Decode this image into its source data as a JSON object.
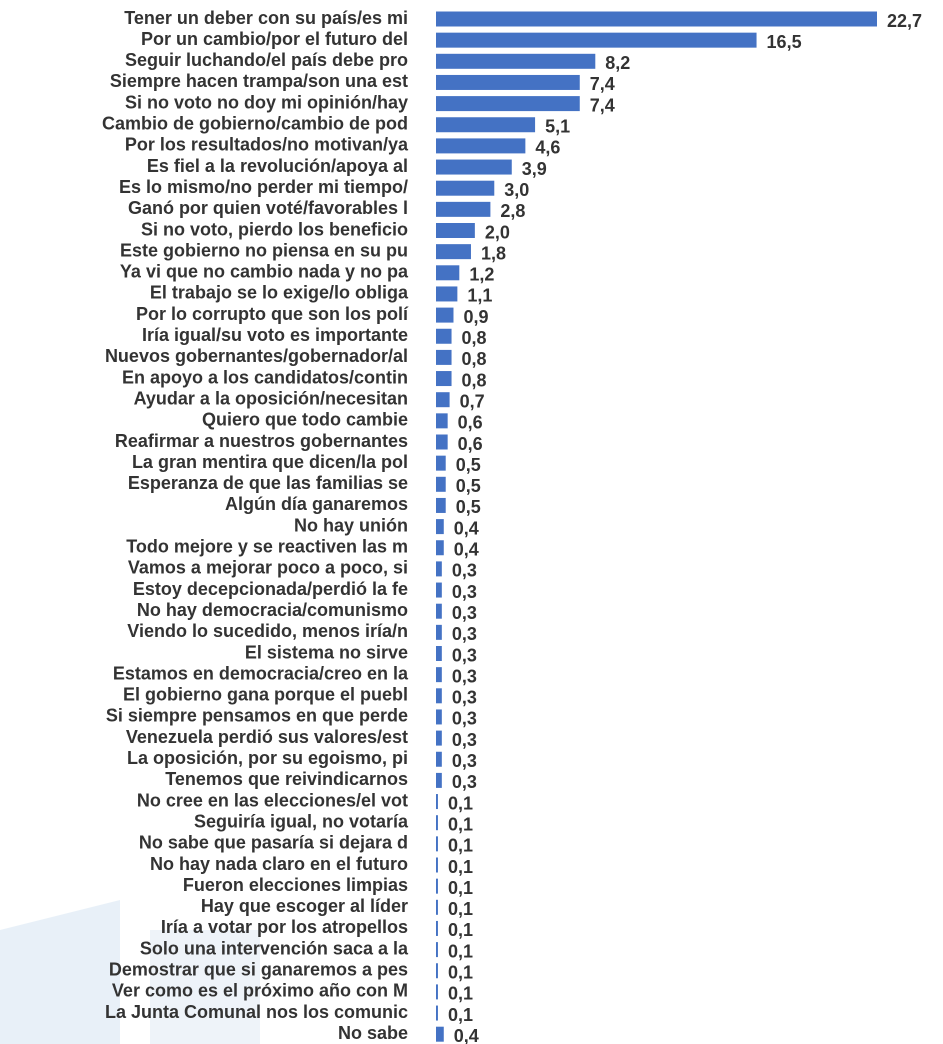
{
  "chart_data": {
    "type": "bar",
    "orientation": "horizontal",
    "color": "#4472c4",
    "categories": [
      "Tener un deber con su país/es mi",
      "Por un cambio/por el futuro del",
      "Seguir luchando/el país debe pro",
      "Siempre hacen trampa/son una est",
      "Si no voto no doy mi opinión/hay",
      "Cambio de gobierno/cambio de pod",
      "Por los resultados/no motivan/ya",
      "Es fiel a la revolución/apoya al",
      "Es lo mismo/no perder mi tiempo/",
      "Ganó por quien voté/favorables l",
      "Si no voto, pierdo los beneficio",
      "Este gobierno no piensa en su pu",
      "Ya vi que no cambio nada y no pa",
      "El trabajo se lo exige/lo obliga",
      "Por lo corrupto que son los polí",
      "Iría igual/su voto es importante",
      "Nuevos gobernantes/gobernador/al",
      "En apoyo a los candidatos/contin",
      "Ayudar a la oposición/necesitan",
      "Quiero que todo cambie",
      "Reafirmar a nuestros gobernantes",
      "La gran mentira que dicen/la pol",
      "Esperanza de que las familias se",
      "Algún día ganaremos",
      "No hay unión",
      "Todo mejore y se reactiven las m",
      "Vamos a mejorar poco a poco, si",
      "Estoy decepcionada/perdió la fe",
      "No hay democracia/comunismo",
      "Viendo lo sucedido, menos iría/n",
      "El sistema no sirve",
      "Estamos en democracia/creo en la",
      "El gobierno gana porque el puebl",
      "Si siempre pensamos en que perde",
      "Venezuela perdió sus valores/est",
      "La oposición, por su egoismo, pi",
      "Tenemos que reivindicarnos",
      "No cree en las elecciones/el vot",
      "Seguiría igual, no votaría",
      "No sabe que pasaría si dejara d",
      "No hay nada claro en el futuro",
      "Fueron elecciones limpias",
      "Hay que escoger al líder",
      "Iría a votar por los atropellos",
      "Solo una intervención saca a la",
      "Demostrar que si ganaremos a pes",
      "Ver como es el próximo año con M",
      "La Junta Comunal nos los comunic",
      "No sabe"
    ],
    "values": [
      22.7,
      16.5,
      8.2,
      7.4,
      7.4,
      5.1,
      4.6,
      3.9,
      3.0,
      2.8,
      2.0,
      1.8,
      1.2,
      1.1,
      0.9,
      0.8,
      0.8,
      0.8,
      0.7,
      0.6,
      0.6,
      0.5,
      0.5,
      0.5,
      0.4,
      0.4,
      0.3,
      0.3,
      0.3,
      0.3,
      0.3,
      0.3,
      0.3,
      0.3,
      0.3,
      0.3,
      0.3,
      0.1,
      0.1,
      0.1,
      0.1,
      0.1,
      0.1,
      0.1,
      0.1,
      0.1,
      0.1,
      0.1,
      0.4
    ],
    "value_labels": [
      "22,7",
      "16,5",
      "8,2",
      "7,4",
      "7,4",
      "5,1",
      "4,6",
      "3,9",
      "3,0",
      "2,8",
      "2,0",
      "1,8",
      "1,2",
      "1,1",
      "0,9",
      "0,8",
      "0,8",
      "0,8",
      "0,7",
      "0,6",
      "0,6",
      "0,5",
      "0,5",
      "0,5",
      "0,4",
      "0,4",
      "0,3",
      "0,3",
      "0,3",
      "0,3",
      "0,3",
      "0,3",
      "0,3",
      "0,3",
      "0,3",
      "0,3",
      "0,3",
      "0,1",
      "0,1",
      "0,1",
      "0,1",
      "0,1",
      "0,1",
      "0,1",
      "0,1",
      "0,1",
      "0,1",
      "0,1",
      "0,4"
    ]
  }
}
